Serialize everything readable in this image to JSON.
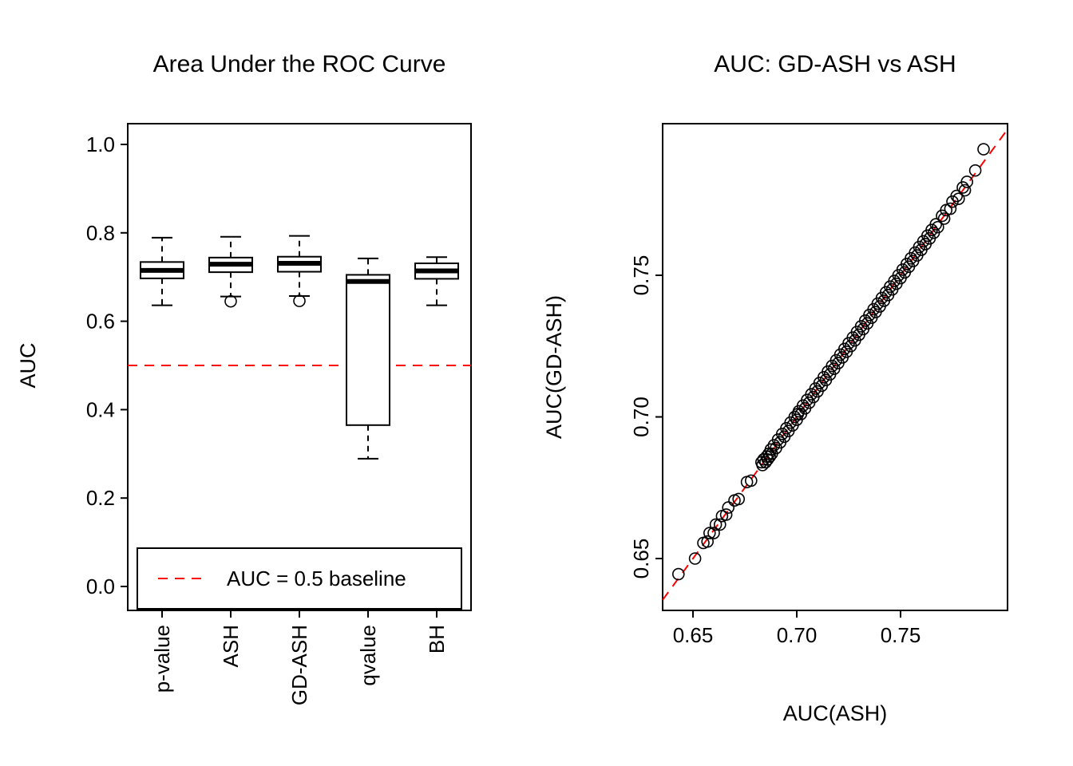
{
  "figure": {
    "background": "#ffffff",
    "frame_color": "#000000"
  },
  "chart_data": [
    {
      "type": "box",
      "title": "Area Under the ROC Curve",
      "xlabel": "",
      "ylabel": "AUC",
      "ylim": [
        0.0,
        1.0
      ],
      "yticks": [
        0.0,
        0.2,
        0.4,
        0.6,
        0.8,
        1.0
      ],
      "ytick_labels": [
        "0.0",
        "0.2",
        "0.4",
        "0.6",
        "0.8",
        "1.0"
      ],
      "categories": [
        "p-value",
        "ASH",
        "GD-ASH",
        "qvalue",
        "BH"
      ],
      "boxes": [
        {
          "whisker_low": 0.636,
          "q1": 0.697,
          "median": 0.715,
          "q3": 0.734,
          "whisker_high": 0.789,
          "outliers": []
        },
        {
          "whisker_low": 0.656,
          "q1": 0.711,
          "median": 0.729,
          "q3": 0.744,
          "whisker_high": 0.791,
          "outliers": [
            0.645
          ]
        },
        {
          "whisker_low": 0.657,
          "q1": 0.712,
          "median": 0.731,
          "q3": 0.746,
          "whisker_high": 0.793,
          "outliers": [
            0.646
          ]
        },
        {
          "whisker_low": 0.289,
          "q1": 0.365,
          "median": 0.69,
          "q3": 0.705,
          "whisker_high": 0.742,
          "outliers": []
        },
        {
          "whisker_low": 0.636,
          "q1": 0.696,
          "median": 0.714,
          "q3": 0.731,
          "whisker_high": 0.745,
          "outliers": []
        }
      ],
      "baseline": {
        "value": 0.5,
        "label": "AUC = 0.5 baseline",
        "color": "#FF0000",
        "style": "dashed"
      },
      "legend_position": "bottom-inside",
      "grid": false
    },
    {
      "type": "scatter",
      "title": "AUC: GD-ASH vs ASH",
      "xlabel": "AUC(ASH)",
      "ylabel": "AUC(GD-ASH)",
      "xlim": [
        0.636,
        0.802
      ],
      "ylim": [
        0.632,
        0.804
      ],
      "xticks": [
        0.65,
        0.7,
        0.75
      ],
      "xtick_labels": [
        "0.65",
        "0.70",
        "0.75"
      ],
      "yticks": [
        0.65,
        0.7,
        0.75
      ],
      "ytick_labels": [
        "0.65",
        "0.70",
        "0.75"
      ],
      "identity_line": {
        "color": "#FF0000",
        "style": "dashed"
      },
      "marker": "open-circle",
      "grid": false,
      "points": [
        [
          0.643,
          0.6445
        ],
        [
          0.651,
          0.65
        ],
        [
          0.655,
          0.6555
        ],
        [
          0.657,
          0.656
        ],
        [
          0.658,
          0.659
        ],
        [
          0.66,
          0.659
        ],
        [
          0.661,
          0.662
        ],
        [
          0.663,
          0.662
        ],
        [
          0.664,
          0.665
        ],
        [
          0.666,
          0.6655
        ],
        [
          0.667,
          0.668
        ],
        [
          0.67,
          0.6705
        ],
        [
          0.672,
          0.671
        ],
        [
          0.676,
          0.677
        ],
        [
          0.678,
          0.6775
        ],
        [
          0.683,
          0.684
        ],
        [
          0.6835,
          0.683
        ],
        [
          0.684,
          0.685
        ],
        [
          0.685,
          0.684
        ],
        [
          0.6855,
          0.686
        ],
        [
          0.686,
          0.685
        ],
        [
          0.6865,
          0.687
        ],
        [
          0.687,
          0.686
        ],
        [
          0.6875,
          0.6885
        ],
        [
          0.688,
          0.687
        ],
        [
          0.689,
          0.69
        ],
        [
          0.69,
          0.689
        ],
        [
          0.691,
          0.692
        ],
        [
          0.692,
          0.691
        ],
        [
          0.693,
          0.694
        ],
        [
          0.694,
          0.693
        ],
        [
          0.695,
          0.696
        ],
        [
          0.696,
          0.695
        ],
        [
          0.697,
          0.698
        ],
        [
          0.698,
          0.697
        ],
        [
          0.699,
          0.7
        ],
        [
          0.7,
          0.699
        ],
        [
          0.7005,
          0.701
        ],
        [
          0.701,
          0.702
        ],
        [
          0.702,
          0.701
        ],
        [
          0.703,
          0.704
        ],
        [
          0.704,
          0.703
        ],
        [
          0.705,
          0.706
        ],
        [
          0.706,
          0.705
        ],
        [
          0.707,
          0.708
        ],
        [
          0.708,
          0.707
        ],
        [
          0.709,
          0.71
        ],
        [
          0.71,
          0.709
        ],
        [
          0.711,
          0.712
        ],
        [
          0.712,
          0.711
        ],
        [
          0.713,
          0.714
        ],
        [
          0.714,
          0.713
        ],
        [
          0.715,
          0.716
        ],
        [
          0.716,
          0.715
        ],
        [
          0.717,
          0.718
        ],
        [
          0.718,
          0.717
        ],
        [
          0.719,
          0.72
        ],
        [
          0.72,
          0.719
        ],
        [
          0.721,
          0.722
        ],
        [
          0.722,
          0.721
        ],
        [
          0.723,
          0.724
        ],
        [
          0.724,
          0.723
        ],
        [
          0.725,
          0.726
        ],
        [
          0.726,
          0.725
        ],
        [
          0.727,
          0.728
        ],
        [
          0.728,
          0.727
        ],
        [
          0.729,
          0.73
        ],
        [
          0.73,
          0.729
        ],
        [
          0.731,
          0.732
        ],
        [
          0.732,
          0.731
        ],
        [
          0.733,
          0.734
        ],
        [
          0.734,
          0.733
        ],
        [
          0.735,
          0.736
        ],
        [
          0.736,
          0.735
        ],
        [
          0.737,
          0.738
        ],
        [
          0.738,
          0.737
        ],
        [
          0.739,
          0.74
        ],
        [
          0.74,
          0.739
        ],
        [
          0.741,
          0.742
        ],
        [
          0.742,
          0.741
        ],
        [
          0.743,
          0.744
        ],
        [
          0.744,
          0.743
        ],
        [
          0.745,
          0.746
        ],
        [
          0.746,
          0.745
        ],
        [
          0.747,
          0.748
        ],
        [
          0.748,
          0.747
        ],
        [
          0.749,
          0.75
        ],
        [
          0.75,
          0.749
        ],
        [
          0.751,
          0.752
        ],
        [
          0.752,
          0.751
        ],
        [
          0.753,
          0.754
        ],
        [
          0.754,
          0.753
        ],
        [
          0.755,
          0.756
        ],
        [
          0.756,
          0.755
        ],
        [
          0.757,
          0.758
        ],
        [
          0.758,
          0.757
        ],
        [
          0.759,
          0.76
        ],
        [
          0.76,
          0.759
        ],
        [
          0.761,
          0.762
        ],
        [
          0.762,
          0.761
        ],
        [
          0.763,
          0.764
        ],
        [
          0.764,
          0.763
        ],
        [
          0.765,
          0.766
        ],
        [
          0.766,
          0.765
        ],
        [
          0.767,
          0.768
        ],
        [
          0.768,
          0.767
        ],
        [
          0.77,
          0.771
        ],
        [
          0.771,
          0.77
        ],
        [
          0.772,
          0.773
        ],
        [
          0.774,
          0.7735
        ],
        [
          0.775,
          0.776
        ],
        [
          0.777,
          0.778
        ],
        [
          0.778,
          0.777
        ],
        [
          0.78,
          0.781
        ],
        [
          0.781,
          0.78
        ],
        [
          0.782,
          0.783
        ],
        [
          0.786,
          0.787
        ],
        [
          0.79,
          0.7945
        ]
      ]
    }
  ]
}
